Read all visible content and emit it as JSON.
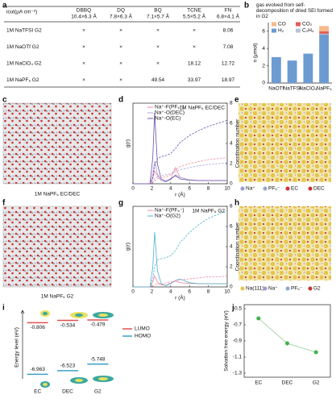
{
  "panel_labels": [
    "a",
    "b",
    "c",
    "d",
    "e",
    "f",
    "g",
    "h",
    "i",
    "j"
  ],
  "table": {
    "header_title": "icut(μA cm⁻²)",
    "columns": [
      {
        "name": "DBBQ",
        "size": "10.4×6.3 Å"
      },
      {
        "name": "DQ",
        "size": "7.8×6.3 Å"
      },
      {
        "name": "BQ",
        "size": "7.1×5.7 Å"
      },
      {
        "name": "TCNE",
        "size": "5.5×5.2 Å"
      },
      {
        "name": "FN",
        "size": "6.8×4.1 Å"
      }
    ],
    "rows": [
      {
        "label": "1M NaTFSI G2",
        "cells": [
          "×",
          "×",
          "×",
          "×",
          "8.06"
        ]
      },
      {
        "label": "1M NaOTf  G2",
        "cells": [
          "×",
          "×",
          "×",
          "×",
          "7.08"
        ]
      },
      {
        "label": "1M NaClO₄ G2",
        "cells": [
          "×",
          "×",
          "×",
          "18.12",
          "12.72"
        ]
      },
      {
        "label": "1M NaPF₆ G2",
        "cells": [
          "×",
          "×",
          "49.54",
          "33.97",
          "18.97"
        ]
      }
    ]
  },
  "images": {
    "c": {
      "caption": "1M NaPF₆ EC/DEC"
    },
    "e": {
      "legend": [
        "Na⁺",
        "PF₆⁻",
        "EC",
        "DEC"
      ]
    },
    "f": {
      "caption": "1M NaPF₆ G2"
    },
    "h": {
      "legend": [
        "Na(111)",
        "Na⁺",
        "PF₆⁻",
        "G2"
      ]
    }
  },
  "chart_data": [
    {
      "type": "bar",
      "stacked": true,
      "title": "gas evolved from self-decomposition of dried SEI formed in G2",
      "y_label": "n (μmol)",
      "categories": [
        "NaOTf",
        "NaTFSI",
        "NaClO₄",
        "NaPF₆"
      ],
      "series": [
        {
          "name": "H₂",
          "color": "#6c9bd2",
          "values": [
            3.0,
            2.6,
            3.4,
            5.6
          ]
        },
        {
          "name": "C₂H₄",
          "color": "#b8c4d6",
          "values": [
            0,
            0,
            0,
            0.1
          ]
        },
        {
          "name": "CO₂",
          "color": "#e0605a",
          "values": [
            0,
            0,
            0,
            0.3
          ]
        },
        {
          "name": "CO",
          "color": "#f7b98a",
          "values": [
            0,
            0,
            0,
            0.6
          ]
        }
      ],
      "ylim": [
        0,
        7
      ],
      "yticks": [
        0,
        2,
        4,
        6
      ],
      "legend": "top"
    },
    {
      "type": "line",
      "annotation": "1M NaPF₆ EC/DEC",
      "x_label": "r (Å)",
      "y_label": "g(r)",
      "y2_label": "Coordination number",
      "x": [
        0,
        1,
        1.8,
        2.1,
        2.3,
        2.6,
        3,
        3.5,
        4,
        4.5,
        5,
        6,
        7,
        8,
        9,
        10
      ],
      "xlim": [
        0,
        10
      ],
      "xticks": [
        0,
        2,
        4,
        6,
        8,
        10
      ],
      "ylim": [
        0,
        25
      ],
      "y2lim": [
        0,
        8
      ],
      "y2ticks": [
        0,
        2,
        4,
        6,
        8
      ],
      "series": [
        {
          "name": "Na⁺-F(PF₆⁻)",
          "color": "#f08aa0",
          "values": [
            0,
            0,
            0,
            1.5,
            4,
            2.5,
            1,
            0.8,
            1.5,
            5,
            2,
            1.2,
            1,
            1,
            1,
            1
          ]
        },
        {
          "name": "Na⁺-O(DEC)",
          "color": "#a9a6e0",
          "values": [
            0,
            0,
            0,
            3,
            7,
            3,
            1,
            0.6,
            1.2,
            2.8,
            2,
            1.2,
            1,
            1,
            1,
            1
          ]
        },
        {
          "name": "Na⁺-O(EC)",
          "color": "#6a4fa8",
          "values": [
            0,
            0,
            0,
            8,
            22,
            6,
            1.5,
            0.8,
            1.5,
            2.5,
            1.5,
            1.1,
            1,
            1,
            1,
            1
          ]
        },
        {
          "color": "#f08aa0",
          "axis": "y2",
          "dashed": true,
          "values": [
            0,
            0,
            0,
            0.1,
            0.3,
            0.5,
            0.6,
            0.7,
            0.9,
            1.4,
            1.7,
            2.0,
            2.2,
            2.4,
            2.5,
            2.6
          ]
        },
        {
          "color": "#a9a6e0",
          "axis": "y2",
          "dashed": true,
          "values": [
            0,
            0,
            0,
            0.2,
            0.5,
            0.7,
            0.8,
            0.9,
            1.0,
            1.2,
            1.4,
            1.6,
            1.8,
            1.9,
            2.0,
            2.1
          ]
        },
        {
          "color": "#6a4fa8",
          "axis": "y2",
          "dashed": true,
          "values": [
            0,
            0,
            0,
            0.6,
            1.8,
            2.5,
            2.7,
            2.8,
            3.0,
            3.5,
            4.1,
            4.8,
            5.3,
            5.7,
            6.0,
            6.3
          ]
        }
      ]
    },
    {
      "type": "line",
      "annotation": "1M NaPF₆ G2",
      "x_label": "r (Å)",
      "y_label": "g(r)",
      "y2_label": "Coordination number",
      "x": [
        0,
        1,
        1.8,
        2.1,
        2.3,
        2.6,
        3,
        3.5,
        4,
        4.5,
        5,
        6,
        7,
        8,
        9,
        10
      ],
      "xlim": [
        0,
        10
      ],
      "xticks": [
        0,
        2,
        4,
        6,
        8,
        10
      ],
      "ylim": [
        0,
        25
      ],
      "y2lim": [
        0,
        8
      ],
      "y2ticks": [
        0,
        2,
        4,
        6,
        8
      ],
      "series": [
        {
          "name": "Na⁺-F(PF₆⁻)",
          "color": "#f08aa0",
          "values": [
            0,
            0,
            0,
            1.5,
            3.5,
            1.5,
            0.7,
            0.5,
            1.2,
            1.8,
            1.3,
            1.1,
            1,
            1,
            1,
            1
          ]
        },
        {
          "name": "Na⁺-O(G2)",
          "color": "#4fb0d0",
          "values": [
            0,
            0,
            0,
            6,
            17,
            5,
            1,
            0.4,
            1.0,
            2.0,
            2.5,
            1.3,
            1,
            1,
            1,
            1
          ]
        },
        {
          "color": "#f08aa0",
          "axis": "y2",
          "dashed": true,
          "values": [
            0,
            0,
            0,
            0.1,
            0.2,
            0.3,
            0.3,
            0.4,
            0.5,
            0.6,
            0.7,
            0.8,
            0.9,
            1.0,
            1.0,
            1.1
          ]
        },
        {
          "color": "#4fb0d0",
          "axis": "y2",
          "dashed": true,
          "values": [
            0,
            0,
            0,
            0.8,
            2.0,
            2.7,
            2.8,
            2.9,
            3.1,
            3.6,
            4.4,
            5.4,
            6.2,
            6.8,
            7.2,
            7.6
          ]
        }
      ]
    },
    {
      "type": "level",
      "y_label": "Energy level (eV)",
      "categories": [
        "EC",
        "DEC",
        "G2"
      ],
      "ylim": [
        -7.5,
        0
      ],
      "series": [
        {
          "name": "LUMO",
          "color": "#e05050",
          "values": [
            -0.806,
            -0.534,
            -0.479
          ]
        },
        {
          "name": "HOMO",
          "color": "#3aa0c8",
          "values": [
            -6.963,
            -6.523,
            -5.748
          ]
        }
      ]
    },
    {
      "type": "line",
      "markers": true,
      "y_label": "Solvation free energy (eV)",
      "categories": [
        "EC",
        "DEC",
        "G2"
      ],
      "values": [
        -0.62,
        -0.93,
        -1.04
      ],
      "color": "#3cb44b",
      "ylim": [
        -1.35,
        -0.45
      ],
      "yticks": [
        -0.5,
        -0.7,
        -0.9,
        -1.1,
        -1.3
      ]
    }
  ]
}
